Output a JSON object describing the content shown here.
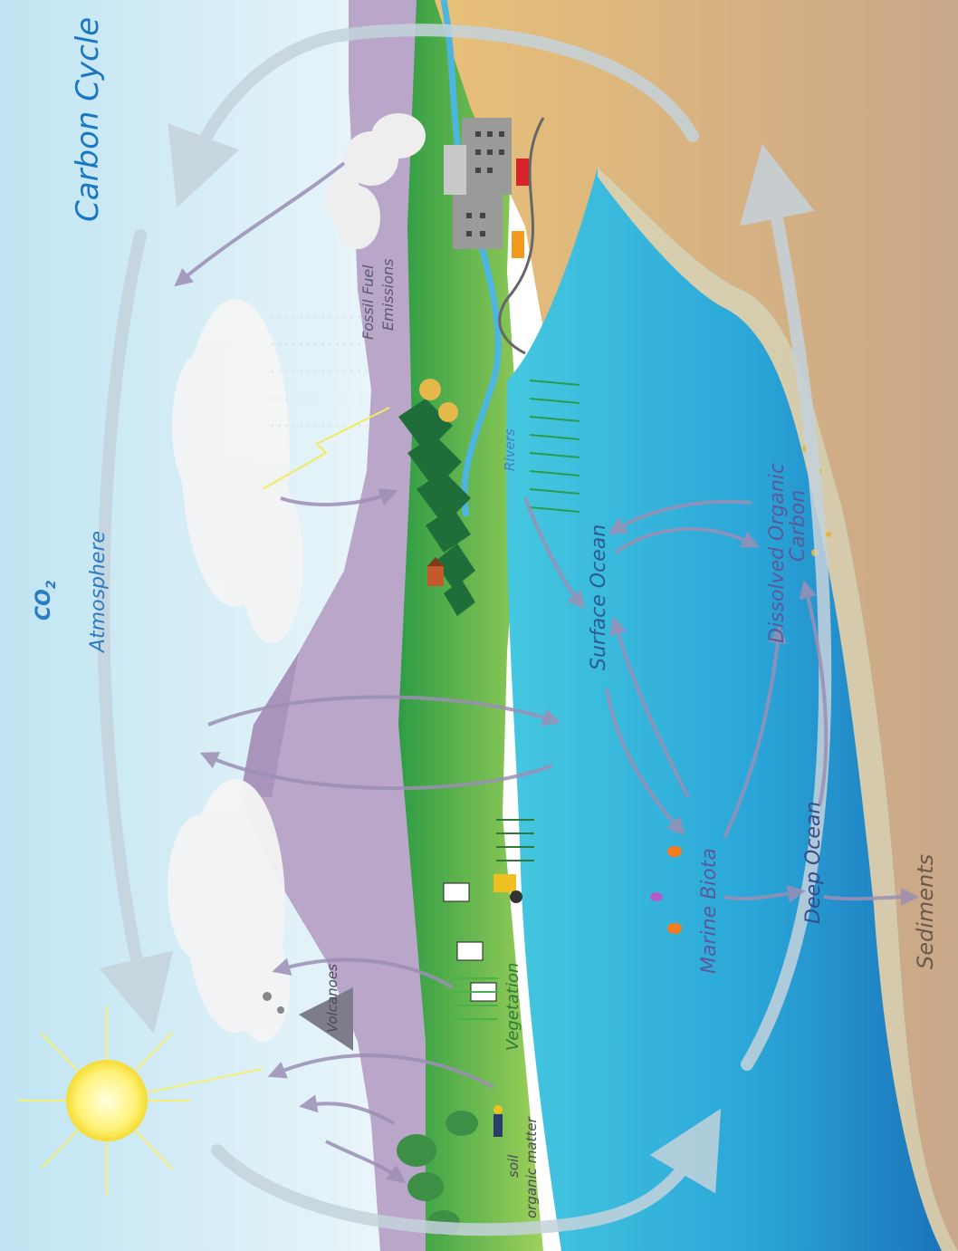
{
  "diagram": {
    "title": "Carbon Cycle",
    "labels": {
      "co2": "CO",
      "co2_sub": "2",
      "atmosphere": "Atmosphere",
      "fossil_fuel_line1": "Fossil Fuel",
      "fossil_fuel_line2": "Emissions",
      "rivers": "Rivers",
      "vegetation": "Vegetation",
      "volcanoes": "Volcanoes",
      "soil_line1": "soil",
      "soil_line2": "organic matter",
      "surface_ocean": "Surface Ocean",
      "dissolved_line1": "Dissolved Organic",
      "dissolved_line2": "Carbon",
      "marine_biota": "Marine Biota",
      "deep_ocean": "Deep Ocean",
      "sediments": "Sediments"
    },
    "colors": {
      "sky": "#dff0f8",
      "mountain": "#b9a6c8",
      "land": "#8cc63f",
      "ocean_surface": "#3cc0dc",
      "ocean_deep": "#1a7ec0",
      "sand": "#d4b48c",
      "cycle_arrow": "#c5d3dc",
      "flow_arrow": "#9c8fb5",
      "title": "#1a78c2"
    }
  }
}
